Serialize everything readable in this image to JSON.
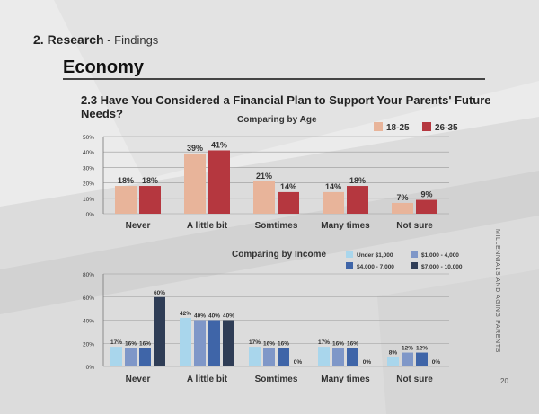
{
  "header": {
    "section_number": "2. Research",
    "separator": " - ",
    "section_sub": "Findings"
  },
  "topic": "Economy",
  "question": "2.3 Have You Considered a Financial Plan to Support Your Parents' Future Needs?",
  "side_text": "MILLENNIALS AND AGING PARENTS",
  "page_number": "20",
  "chart_data": [
    {
      "type": "bar",
      "title": "Comparing by Age",
      "categories": [
        "Never",
        "A little bit",
        "Somtimes",
        "Many times",
        "Not sure"
      ],
      "series": [
        {
          "name": "18-25",
          "color": "#e8b49a",
          "values": [
            18,
            39,
            21,
            14,
            7
          ]
        },
        {
          "name": "26-35",
          "color": "#b5373f",
          "values": [
            18,
            41,
            14,
            18,
            9
          ]
        }
      ],
      "data_labels": [
        [
          "18%",
          "39%",
          "21%",
          "14%",
          "7%"
        ],
        [
          "18%",
          "41%",
          "14%",
          "18%",
          "9%"
        ]
      ],
      "ylim": [
        0,
        50
      ],
      "yticks": [
        "0%",
        "10%",
        "20%",
        "30%",
        "40%",
        "50%"
      ],
      "grid": true,
      "legend": "top-right"
    },
    {
      "type": "bar",
      "title": "Comparing by Income",
      "categories": [
        "Never",
        "A little bit",
        "Somtimes",
        "Many times",
        "Not sure"
      ],
      "series": [
        {
          "name": "Under $1,000",
          "color": "#a9d6ec",
          "values": [
            17,
            42,
            17,
            17,
            8
          ]
        },
        {
          "name": "$1,000 - 4,000",
          "color": "#7f97c8",
          "values": [
            16,
            40,
            16,
            16,
            12
          ]
        },
        {
          "name": "$4,000 - 7,000",
          "color": "#3f65a8",
          "values": [
            16,
            40,
            16,
            16,
            12
          ]
        },
        {
          "name": "$7,000 - 10,000",
          "color": "#2f3d56",
          "values": [
            60,
            40,
            0,
            0,
            0
          ]
        }
      ],
      "data_labels": [
        [
          "17%",
          "42%",
          "17%",
          "17%",
          "8%"
        ],
        [
          "16%",
          "40%",
          "16%",
          "16%",
          "12%"
        ],
        [
          "16%",
          "40%",
          "16%",
          "16%",
          "12%"
        ],
        [
          "60%",
          "40%",
          "0%",
          "0%",
          "0%"
        ]
      ],
      "ylim": [
        0,
        80
      ],
      "yticks": [
        "0%",
        "20%",
        "40%",
        "60%",
        "80%"
      ],
      "grid": true,
      "legend": "top-right"
    }
  ]
}
